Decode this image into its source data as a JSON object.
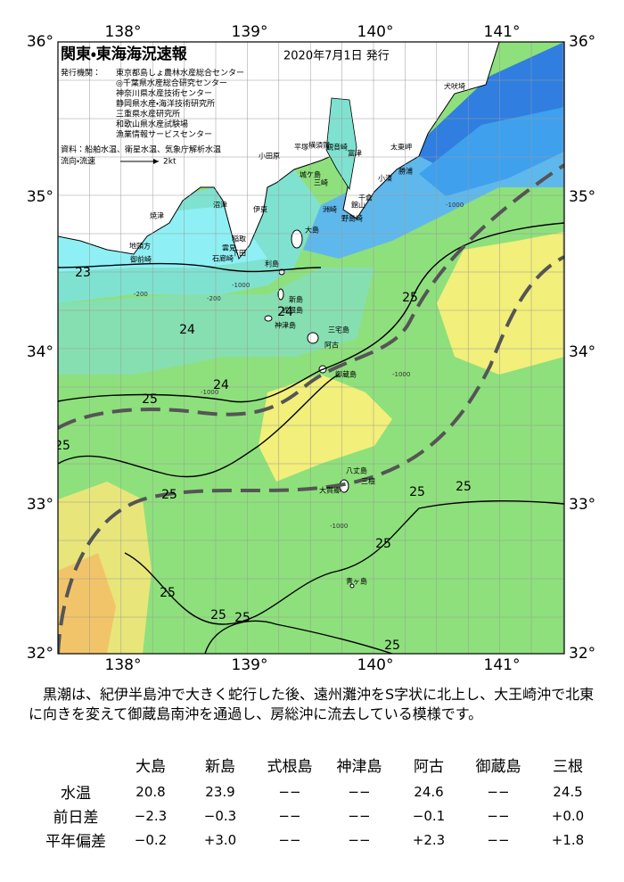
{
  "map": {
    "title": "関東・東海海況速報",
    "issued": "2020年7月1日 発行",
    "publisher_label": "発行機関：",
    "publishers": [
      "東京都島しょ農林水産総合センター",
      "◎千葉県水産総合研究センター",
      "神奈川県水産技術センター",
      "静岡県水産・海洋技術研究所",
      "三重県水産研究所",
      "和歌山県水産試験場",
      "漁業情報サービスセンター"
    ],
    "source": "資料：船舶水温、衛星水温、気象庁解析水温",
    "legend_label": "流向・流速",
    "legend_scale": "2kt",
    "lon_labels": [
      "138°",
      "139°",
      "140°",
      "141°"
    ],
    "lat_labels": [
      "36°",
      "35°",
      "34°",
      "33°",
      "32°"
    ],
    "places": [
      "犬吠埼",
      "太東岬",
      "勝浦",
      "小湊",
      "千倉",
      "館山",
      "野島崎",
      "洲崎",
      "観音崎",
      "富津",
      "城ケ島",
      "平塚",
      "横須賀",
      "三崎",
      "小田原",
      "伊東",
      "沼津",
      "稲取",
      "焼津",
      "下田",
      "雲見",
      "石廊崎",
      "地頭方",
      "御前崎",
      "大島",
      "利島",
      "新島",
      "式根島",
      "神津島",
      "三宅島",
      "阿古",
      "御蔵島",
      "八丈島",
      "三根",
      "大賀郷",
      "青ヶ島"
    ],
    "isotherm_labels": [
      "23",
      "24",
      "24",
      "24",
      "25",
      "25",
      "25",
      "25",
      "25",
      "25",
      "25",
      "25",
      "25",
      "25",
      "25"
    ],
    "depth_labels": [
      "-200",
      "-200",
      "-1000",
      "-1000",
      "-1000",
      "-1000",
      "-1000"
    ]
  },
  "description": "黒潮は、紀伊半島沖で大きく蛇行した後、遠州灘沖をS字状に北上し、大王崎沖で北東に向きを変えて御蔵島南沖を通過し、房総沖に流去している模様です。",
  "table": {
    "header": [
      "大島",
      "新島",
      "式根島",
      "神津島",
      "阿古",
      "御蔵島",
      "三根"
    ],
    "rows": [
      {
        "label": "水温",
        "values": [
          "20.8",
          "23.9",
          "−−",
          "−−",
          "24.6",
          "−−",
          "24.5"
        ]
      },
      {
        "label": "前日差",
        "values": [
          "−2.3",
          "−0.3",
          "−−",
          "−−",
          "−0.1",
          "−−",
          "+0.0"
        ]
      },
      {
        "label": "平年偏差",
        "values": [
          "−0.2",
          "+3.0",
          "−−",
          "−−",
          "+2.3",
          "−−",
          "+1.8"
        ]
      }
    ]
  }
}
